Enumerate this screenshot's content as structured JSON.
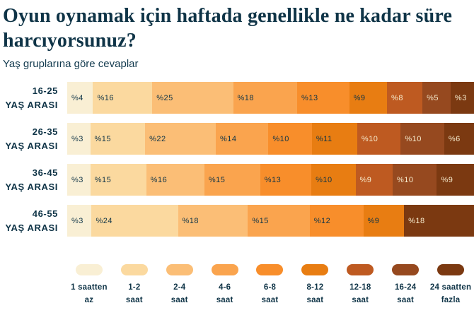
{
  "header": {
    "title": "Oyun oynamak için haftada genellikle ne kadar süre harcıyorsunuz?",
    "subtitle": "Yaş gruplarına göre cevaplar"
  },
  "colors": {
    "background": "#ffffff",
    "text_dark": "#0f3447",
    "text_light": "#f7ecce",
    "palette": [
      "#f9efd4",
      "#fbd99f",
      "#fbbe76",
      "#faa44e",
      "#f88e2b",
      "#e87d12",
      "#be5a21",
      "#96491f",
      "#7b3911"
    ]
  },
  "chart_data": {
    "type": "bar",
    "variant": "stacked-horizontal-percent",
    "title": "Oyun oynamak için haftada genellikle ne kadar süre harcıyorsunuz?",
    "subtitle": "Yaş gruplarına göre cevaplar",
    "unit": "%",
    "legend_position": "bottom",
    "grid": false,
    "categories": [
      "1 saatten az",
      "1-2 saat",
      "2-4 saat",
      "4-6 saat",
      "6-8 saat",
      "8-12 saat",
      "12-18 saat",
      "16-24 saat",
      "24 saatten fazla"
    ],
    "legend_label_lines": [
      [
        "1 saatten",
        "az"
      ],
      [
        "1-2",
        "saat"
      ],
      [
        "2-4",
        "saat"
      ],
      [
        "4-6",
        "saat"
      ],
      [
        "6-8",
        "saat"
      ],
      [
        "8-12",
        "saat"
      ],
      [
        "12-18",
        "saat"
      ],
      [
        "16-24",
        "saat"
      ],
      [
        "24 saatten",
        "fazla"
      ]
    ],
    "rows": [
      {
        "group_line1": "16-25",
        "group_line2": "YAŞ ARASI",
        "segments": [
          {
            "category_index": 0,
            "value": 4,
            "label": "%4"
          },
          {
            "category_index": 1,
            "value": 16,
            "label": "%16"
          },
          {
            "category_index": 2,
            "value": 25,
            "label": "%25"
          },
          {
            "category_index": 3,
            "value": 18,
            "label": "%18"
          },
          {
            "category_index": 4,
            "value": 13,
            "label": "%13"
          },
          {
            "category_index": 5,
            "value": 9,
            "label": "%9"
          },
          {
            "category_index": 6,
            "value": 8,
            "label": "%8"
          },
          {
            "category_index": 7,
            "value": 5,
            "label": "%5"
          },
          {
            "category_index": 8,
            "value": 3,
            "label": "%3"
          }
        ]
      },
      {
        "group_line1": "26-35",
        "group_line2": "YAŞ ARASI",
        "segments": [
          {
            "category_index": 0,
            "value": 3,
            "label": "%3"
          },
          {
            "category_index": 1,
            "value": 15,
            "label": "%15"
          },
          {
            "category_index": 2,
            "value": 22,
            "label": "%22"
          },
          {
            "category_index": 3,
            "value": 14,
            "label": "%14"
          },
          {
            "category_index": 4,
            "value": 10,
            "label": "%10"
          },
          {
            "category_index": 5,
            "value": 11,
            "label": "%11"
          },
          {
            "category_index": 6,
            "value": 10,
            "label": "%10"
          },
          {
            "category_index": 7,
            "value": 10,
            "label": "%10"
          },
          {
            "category_index": 8,
            "value": 6,
            "label": "%6"
          }
        ]
      },
      {
        "group_line1": "36-45",
        "group_line2": "YAŞ ARASI",
        "segments": [
          {
            "category_index": 0,
            "value": 3,
            "label": "%3"
          },
          {
            "category_index": 1,
            "value": 15,
            "label": "%15"
          },
          {
            "category_index": 2,
            "value": 16,
            "label": "%16"
          },
          {
            "category_index": 3,
            "value": 15,
            "label": "%15"
          },
          {
            "category_index": 4,
            "value": 13,
            "label": "%13"
          },
          {
            "category_index": 5,
            "value": 10,
            "label": "%10"
          },
          {
            "category_index": 6,
            "value": 9,
            "label": "%9"
          },
          {
            "category_index": 7,
            "value": 10,
            "label": "%10"
          },
          {
            "category_index": 8,
            "value": 9,
            "label": "%9"
          }
        ]
      },
      {
        "group_line1": "46-55",
        "group_line2": "YAŞ ARASI",
        "segments": [
          {
            "category_index": 0,
            "value": 3,
            "label": "%3"
          },
          {
            "category_index": 1,
            "value": 24,
            "label": "%24"
          },
          {
            "category_index": 2,
            "value": 18,
            "label": "%18"
          },
          {
            "category_index": 3,
            "value": 15,
            "label": "%15"
          },
          {
            "category_index": 4,
            "value": 12,
            "label": "%12"
          },
          {
            "category_index": 5,
            "value": 9,
            "label": "%9"
          },
          {
            "category_index": 8,
            "value": 18,
            "label": "%18"
          }
        ]
      }
    ]
  }
}
